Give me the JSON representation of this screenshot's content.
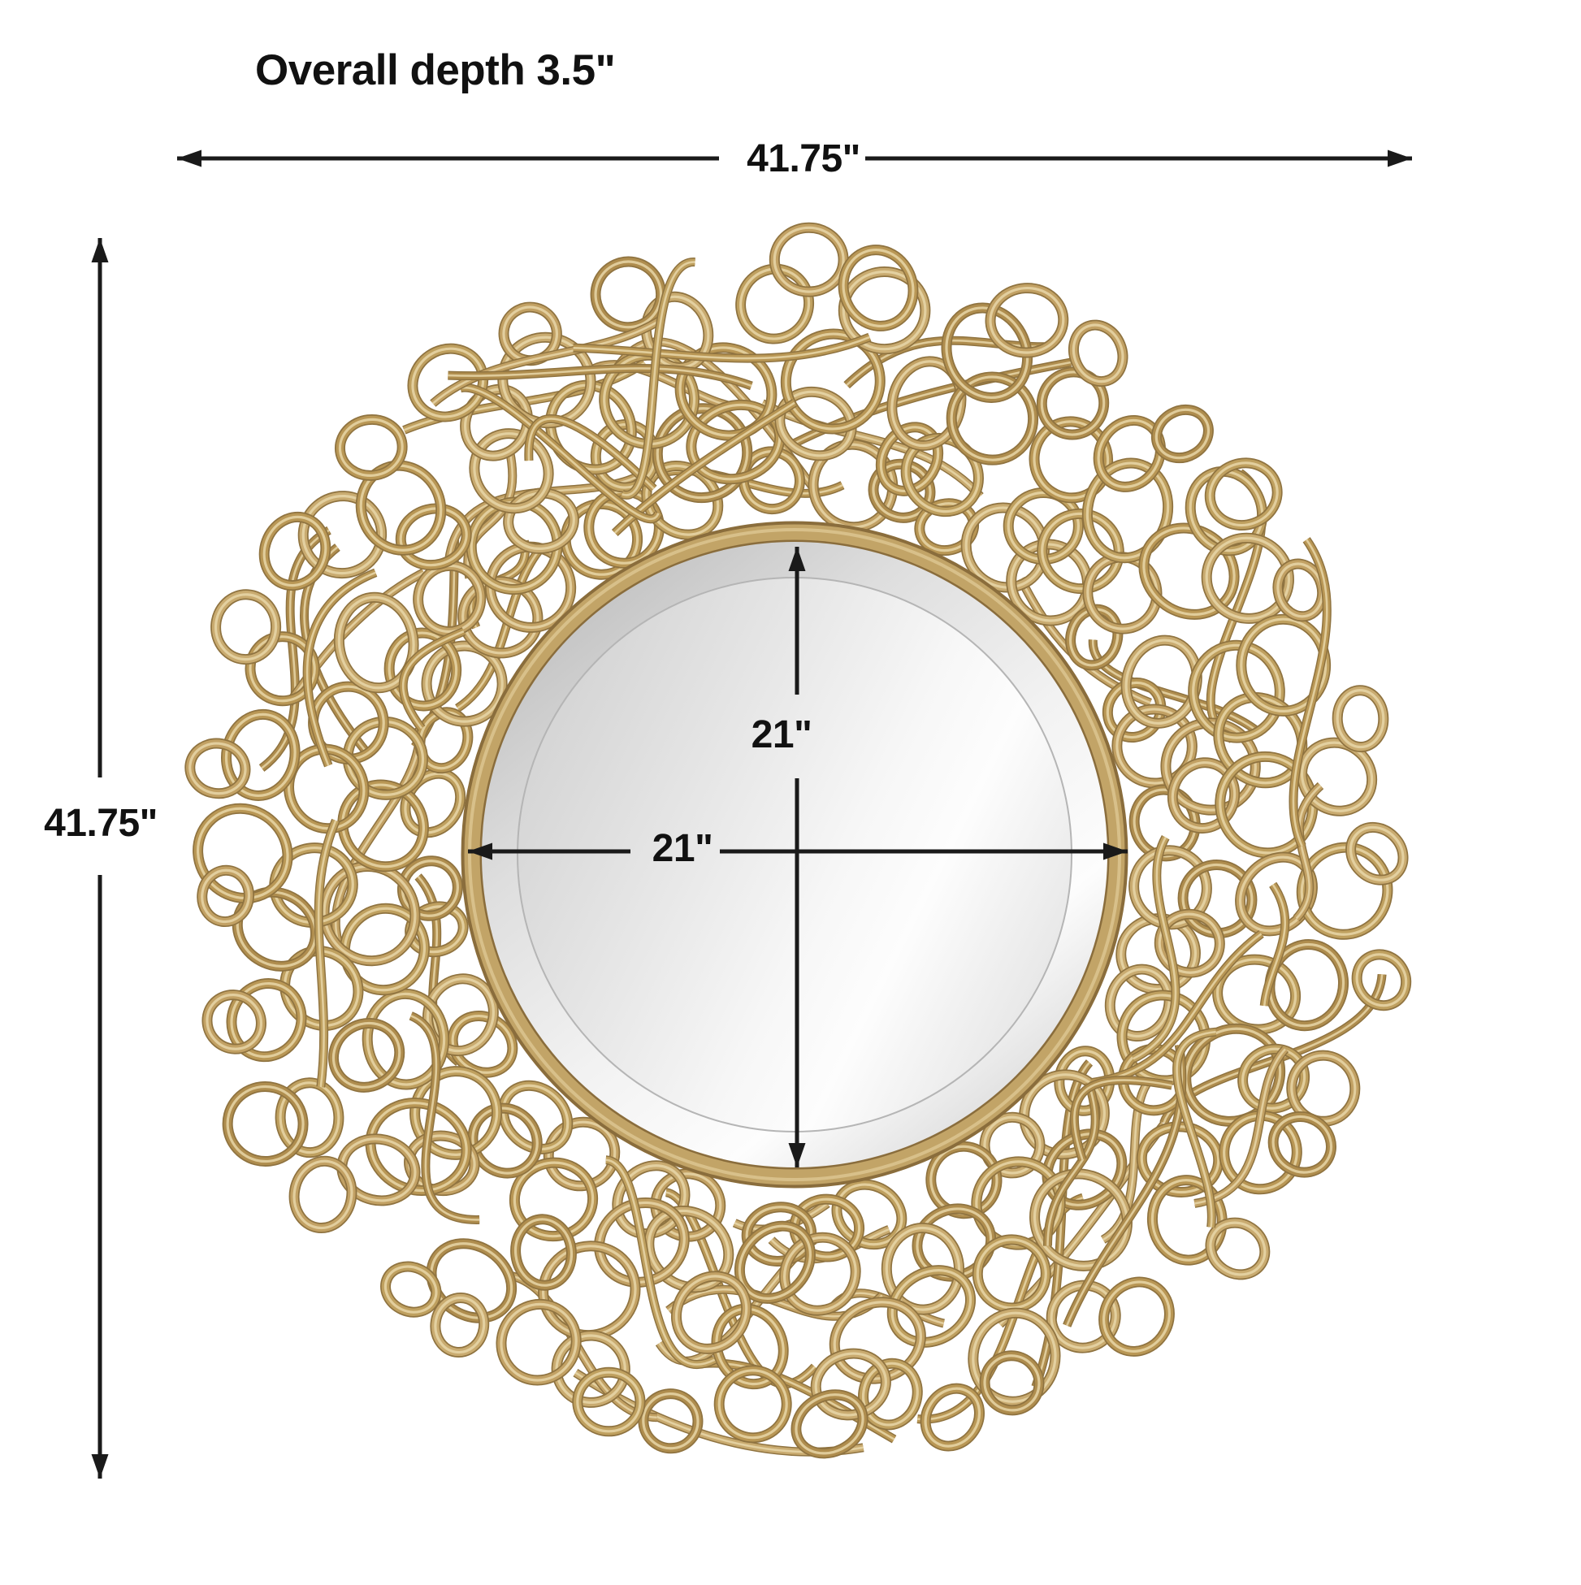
{
  "page": {
    "background": "#ffffff"
  },
  "labels": {
    "overall_depth": "Overall depth 3.5\"",
    "overall_width": "41.75\"",
    "overall_height": "41.75\"",
    "glass_height": "21\"",
    "glass_width": "21\""
  },
  "dimensions_shown": {
    "overall_width_in": 41.75,
    "overall_height_in": 41.75,
    "overall_depth_in": 3.5,
    "glass_width_in": 21,
    "glass_height_in": 21
  },
  "style": {
    "dimension_line_color": "#1a1a1a",
    "label_text_color": "#111111",
    "frame_gold_base": [
      "#c2a164",
      "#b99755",
      "#c9ab70",
      "#af8d4e",
      "#bfa05f"
    ],
    "frame_gold_dark": "#8f7340",
    "frame_gold_highlight": "#e7d6a8",
    "rim_gold": "#c2a467",
    "rim_gold_dark": "#8a6d3c",
    "rim_gold_highlight": "#dcc591",
    "glass_gray_dark": "#d2d2d2",
    "glass_gray_mid": "#e8e8e8",
    "glass_gray_light": "#fdfdfd",
    "bevel_gray_dark": "#b9b9b9",
    "bevel_gray_light": "#f2f2f2",
    "bevel_edge_line": "#b5b5b5"
  }
}
